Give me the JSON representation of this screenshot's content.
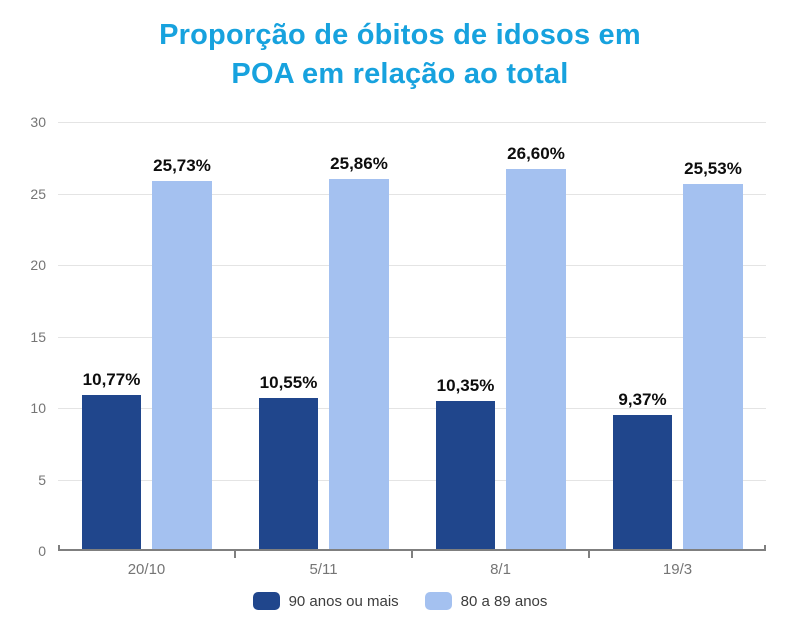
{
  "title": {
    "line1": "Proporção de óbitos de idosos em",
    "line2": "POA em relação ao total",
    "color": "#17a2de"
  },
  "chart_data": {
    "type": "bar",
    "title": "Proporção de óbitos de idosos em POA em relação ao total",
    "categories": [
      "20/10",
      "5/11",
      "8/1",
      "19/3"
    ],
    "series": [
      {
        "name": "90 anos ou mais",
        "color": "#20468c",
        "values": [
          10.77,
          10.55,
          10.35,
          9.37
        ],
        "labels": [
          "10,77%",
          "10,55%",
          "10,35%",
          "9,37%"
        ]
      },
      {
        "name": "80 a 89 anos",
        "color": "#a4c1f0",
        "values": [
          25.73,
          25.86,
          26.6,
          25.53
        ],
        "labels": [
          "25,73%",
          "25,86%",
          "26,60%",
          "25,53%"
        ]
      }
    ],
    "xlabel": "",
    "ylabel": "",
    "ylim": [
      0,
      30
    ],
    "yticks": [
      0,
      5,
      10,
      15,
      20,
      25,
      30
    ],
    "grid": true,
    "legend_position": "bottom"
  }
}
